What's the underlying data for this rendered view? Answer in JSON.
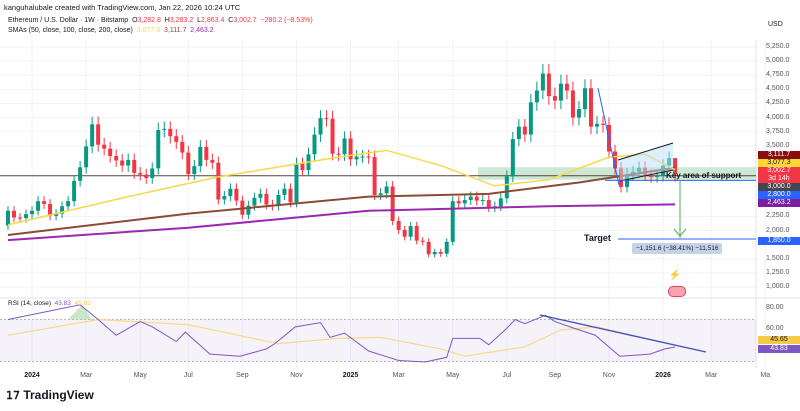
{
  "header": {
    "credit": "kanguhalubale created with TradingView.com, Jan 22, 2026 10:24 UTC",
    "symbol": "Ethereum / U.S. Dollar · 1W · Bitstamp",
    "open_label": "O",
    "open": "3,282.8",
    "high_label": "H",
    "high": "3,283.2",
    "low_label": "L",
    "low": "2,863.4",
    "close_label": "C",
    "close": "3,002.7",
    "change": "−280.2 (−8.53%)",
    "sma_label": "SMAs (50, close, 100, close, 200, close)",
    "sma50": "3,077.3",
    "sma100": "3,111.7",
    "sma200": "2,463.2"
  },
  "price_axis": {
    "currency": "USD",
    "ticks": [
      "5,250.0",
      "5,000.0",
      "4,750.0",
      "4,500.0",
      "4,250.0",
      "4,000.0",
      "3,750.0",
      "3,500.0",
      "2,250.0",
      "2,000.0",
      "1,500.0",
      "1,250.0",
      "1,000.0"
    ],
    "tick_values": [
      5250,
      5000,
      4750,
      4500,
      4250,
      4000,
      3750,
      3500,
      2250,
      2000,
      1500,
      1250,
      1000
    ],
    "labels": [
      {
        "text": "3,111.7",
        "sub": "",
        "color": "#880e0e",
        "price": 3111.7
      },
      {
        "text": "3,077.3",
        "sub": "",
        "color": "#fdd835",
        "price": 3077.3
      },
      {
        "text": "3,002.7",
        "sub": "3d 14h",
        "color": "#f23645",
        "price": 3002.7
      },
      {
        "text": "3,000.0",
        "sub": "",
        "color": "#434651",
        "price": 3000
      },
      {
        "text": "2,800.0",
        "sub": "",
        "color": "#2962ff",
        "price": 2800
      },
      {
        "text": "2,463.2",
        "sub": "",
        "color": "#7b1fa2",
        "price": 2463.2
      },
      {
        "text": "1,850.0",
        "sub": "",
        "color": "#2962ff",
        "price": 1850
      }
    ]
  },
  "time_axis": [
    {
      "label": "2024",
      "week": 4,
      "bold": true
    },
    {
      "label": "Mar",
      "week": 13
    },
    {
      "label": "May",
      "week": 22
    },
    {
      "label": "Jul",
      "week": 30
    },
    {
      "label": "Sep",
      "week": 39
    },
    {
      "label": "Nov",
      "week": 48
    },
    {
      "label": "2025",
      "week": 57,
      "bold": true
    },
    {
      "label": "Mar",
      "week": 65
    },
    {
      "label": "May",
      "week": 74
    },
    {
      "label": "Jul",
      "week": 83
    },
    {
      "label": "Sep",
      "week": 91
    },
    {
      "label": "Nov",
      "week": 100
    },
    {
      "label": "2026",
      "week": 109,
      "bold": true
    },
    {
      "label": "Mar",
      "week": 117
    },
    {
      "label": "Ma",
      "week": 126
    }
  ],
  "annotations": {
    "support_text": "Key area of support",
    "target_text": "Target",
    "measure_text": "−1,151.6 (−38.41%) −11,516",
    "support_zone": [
      2900,
      3120
    ],
    "target_price": 1850,
    "support_line_price": 2800,
    "resistance_line_price": 3111.7
  },
  "rsi": {
    "label": "RSI (14, close)",
    "value": "43.83",
    "ma_value": "45.65",
    "ticks": [
      "80.00",
      "60.00"
    ],
    "tick_values": [
      80,
      60
    ],
    "label_ma_color": "#f7c948",
    "label_color": "#7e57c2"
  },
  "colors": {
    "up": "#089981",
    "down": "#f23645",
    "sma50": "#f7d94c",
    "sma100": "#8d4a36",
    "sma200": "#9c27b0",
    "rsi": "#7e57c2",
    "accent": "#2962ff"
  },
  "footer": {
    "brand": "TradingView"
  },
  "chart_data": {
    "type": "candlestick",
    "interval": "1W",
    "first_week": "2023-12-04",
    "first_open": 2090,
    "last_candle": {
      "open": 3282.8,
      "high": 3283.2,
      "low": 2863.4,
      "close": 3002.7
    },
    "closes": [
      2350,
      2230,
      2220,
      2290,
      2350,
      2520,
      2470,
      2260,
      2300,
      2430,
      2520,
      2880,
      3120,
      3490,
      3880,
      3520,
      3450,
      3320,
      3240,
      3150,
      3250,
      3020,
      2990,
      2930,
      3100,
      3780,
      3800,
      3670,
      3570,
      3380,
      3000,
      3140,
      3480,
      3250,
      3200,
      2550,
      2610,
      2740,
      2530,
      2280,
      2440,
      2580,
      2650,
      2460,
      2440,
      2630,
      2740,
      2500,
      3180,
      3070,
      3350,
      3700,
      3990,
      3980,
      3360,
      3350,
      3630,
      3260,
      3310,
      3310,
      3300,
      2630,
      2660,
      2780,
      2170,
      2010,
      1890,
      2080,
      1820,
      1800,
      1580,
      1620,
      1590,
      1800,
      2520,
      2480,
      2540,
      2600,
      2530,
      2540,
      2410,
      2430,
      2570,
      2960,
      3620,
      3840,
      3700,
      4270,
      4480,
      4780,
      4380,
      4300,
      4600,
      4480,
      4000,
      4150,
      4520,
      3840,
      3890,
      3870,
      3400,
      3100,
      2770,
      3000,
      3040,
      3110,
      2980,
      2950,
      2970,
      3150,
      3282.8,
      3002.7
    ],
    "sma50": [
      [
        0,
        2100
      ],
      [
        20,
        2600
      ],
      [
        35,
        2950
      ],
      [
        55,
        3300
      ],
      [
        63,
        3420
      ],
      [
        72,
        3150
      ],
      [
        81,
        2790
      ],
      [
        90,
        2900
      ],
      [
        100,
        3300
      ],
      [
        106,
        3350
      ],
      [
        111,
        3077.3
      ]
    ],
    "sma100": [
      [
        0,
        1920
      ],
      [
        30,
        2300
      ],
      [
        60,
        2600
      ],
      [
        80,
        2650
      ],
      [
        95,
        2850
      ],
      [
        111,
        3111.7
      ]
    ],
    "sma200": [
      [
        0,
        1830
      ],
      [
        30,
        2050
      ],
      [
        60,
        2350
      ],
      [
        90,
        2430
      ],
      [
        111,
        2463.2
      ]
    ],
    "rsi_series": [
      [
        0,
        70
      ],
      [
        12,
        84
      ],
      [
        15,
        70
      ],
      [
        18,
        55
      ],
      [
        22,
        68
      ],
      [
        24,
        63
      ],
      [
        28,
        49
      ],
      [
        29.5,
        58
      ],
      [
        33.6,
        37
      ],
      [
        38.6,
        35
      ],
      [
        43,
        42
      ],
      [
        44.4,
        47
      ],
      [
        47.8,
        63
      ],
      [
        52,
        67
      ],
      [
        53.6,
        53
      ],
      [
        56,
        57
      ],
      [
        60,
        40
      ],
      [
        65,
        31
      ],
      [
        69.4,
        29.5
      ],
      [
        73,
        34
      ],
      [
        74,
        52
      ],
      [
        78.5,
        52
      ],
      [
        80,
        46
      ],
      [
        82.7,
        60
      ],
      [
        84.4,
        70
      ],
      [
        86,
        66
      ],
      [
        89.4,
        74
      ],
      [
        91,
        68
      ],
      [
        94,
        62
      ],
      [
        97.7,
        55
      ],
      [
        101.8,
        35
      ],
      [
        106.8,
        37
      ],
      [
        109.3,
        42
      ],
      [
        111,
        43.83
      ]
    ],
    "rsi_ma": [
      [
        0,
        55
      ],
      [
        15,
        70
      ],
      [
        30,
        65
      ],
      [
        45,
        47
      ],
      [
        55,
        52
      ],
      [
        62,
        53
      ],
      [
        72,
        42
      ],
      [
        76,
        35
      ],
      [
        86,
        44
      ],
      [
        92,
        60
      ],
      [
        98,
        63
      ],
      [
        106,
        52
      ],
      [
        111,
        45.65
      ]
    ],
    "rsi_bands": [
      70,
      30
    ],
    "ylim": [
      1000,
      5250
    ],
    "yscale": "linear"
  }
}
